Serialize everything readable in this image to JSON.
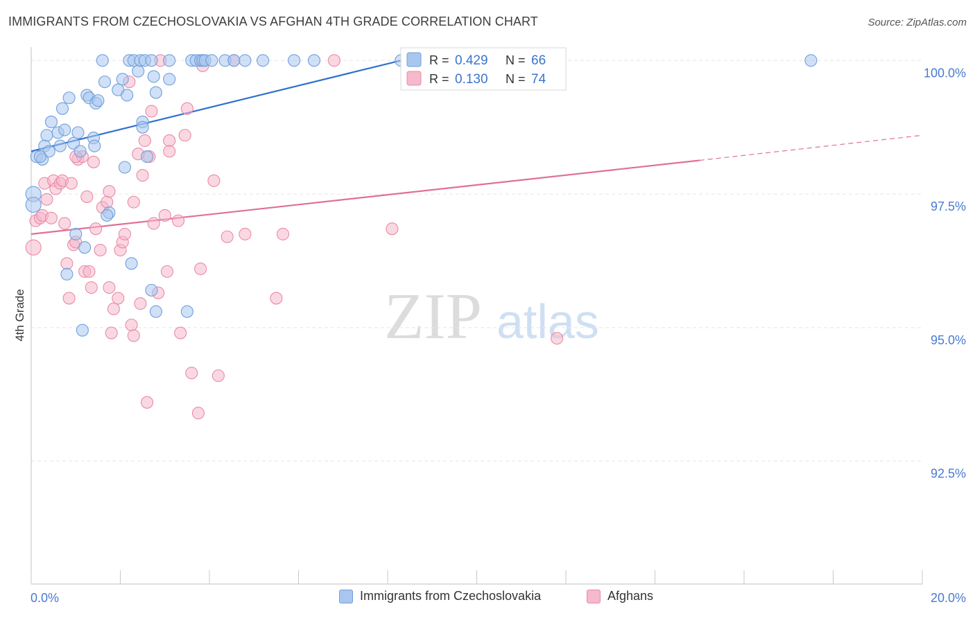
{
  "header": {
    "title": "IMMIGRANTS FROM CZECHOSLOVAKIA VS AFGHAN 4TH GRADE CORRELATION CHART",
    "source": "Source: ZipAtlas.com"
  },
  "watermark": {
    "zip": "ZIP",
    "atlas": "atlas"
  },
  "colors": {
    "blue_fill": "#a9c6ee",
    "blue_stroke": "#6f9fdc",
    "blue_line": "#2f6fce",
    "pink_fill": "#f6b8cb",
    "pink_stroke": "#e98aa8",
    "pink_line": "#e06f98",
    "axis_label": "#4a7ad0",
    "grid": "#e5e5e5"
  },
  "legend": {
    "rows": [
      {
        "r_label": "R =",
        "r_value": "0.429",
        "n_label": "N =",
        "n_value": "66"
      },
      {
        "r_label": "R =",
        "r_value": "0.130",
        "n_label": "N =",
        "n_value": "74"
      }
    ],
    "bottom": [
      "Immigrants from Czechoslovakia",
      "Afghans"
    ]
  },
  "chart_data": {
    "type": "scatter",
    "title": "IMMIGRANTS FROM CZECHOSLOVAKIA VS AFGHAN 4TH GRADE CORRELATION CHART",
    "xlabel": "",
    "ylabel": "4th Grade",
    "xlim": [
      0,
      20
    ],
    "ylim": [
      90.2,
      100.25
    ],
    "x_tick_labels": [
      "0.0%",
      "20.0%"
    ],
    "y_ticks": [
      100,
      97.5,
      95,
      92.5
    ],
    "y_tick_labels": [
      "100.0%",
      "97.5%",
      "95.0%",
      "92.5%"
    ],
    "grid": true,
    "legend_position": "top-center",
    "series": [
      {
        "name": "Immigrants from Czechoslovakia",
        "color": "#a9c6ee",
        "trend": {
          "x": [
            0,
            8.3
          ],
          "y": [
            98.3,
            100.0
          ]
        },
        "points": [
          [
            0.05,
            97.5
          ],
          [
            0.05,
            97.3
          ],
          [
            0.12,
            98.2
          ],
          [
            0.25,
            98.15
          ],
          [
            0.3,
            98.4
          ],
          [
            0.35,
            98.6
          ],
          [
            0.4,
            98.3
          ],
          [
            0.45,
            98.85
          ],
          [
            0.6,
            98.65
          ],
          [
            0.65,
            98.4
          ],
          [
            0.7,
            99.1
          ],
          [
            0.75,
            98.7
          ],
          [
            0.85,
            99.3
          ],
          [
            0.95,
            98.45
          ],
          [
            1.05,
            98.65
          ],
          [
            1.1,
            98.3
          ],
          [
            1.25,
            99.35
          ],
          [
            1.3,
            99.3
          ],
          [
            1.4,
            98.55
          ],
          [
            1.42,
            98.4
          ],
          [
            1.45,
            99.2
          ],
          [
            1.5,
            99.25
          ],
          [
            1.6,
            100.0
          ],
          [
            1.65,
            99.6
          ],
          [
            1.95,
            99.45
          ],
          [
            2.05,
            99.65
          ],
          [
            2.15,
            99.35
          ],
          [
            2.2,
            100.0
          ],
          [
            2.3,
            100.0
          ],
          [
            2.4,
            99.8
          ],
          [
            2.45,
            100.0
          ],
          [
            2.55,
            100.0
          ],
          [
            2.5,
            98.85
          ],
          [
            2.5,
            98.75
          ],
          [
            2.6,
            98.2
          ],
          [
            2.7,
            100.0
          ],
          [
            2.75,
            99.7
          ],
          [
            2.8,
            99.4
          ],
          [
            3.1,
            99.65
          ],
          [
            3.1,
            100.0
          ],
          [
            3.6,
            100.0
          ],
          [
            3.7,
            100.0
          ],
          [
            3.8,
            100.0
          ],
          [
            3.85,
            100.0
          ],
          [
            3.9,
            100.0
          ],
          [
            4.05,
            100.0
          ],
          [
            4.35,
            100.0
          ],
          [
            4.55,
            100.0
          ],
          [
            4.8,
            100.0
          ],
          [
            5.2,
            100.0
          ],
          [
            5.9,
            100.0
          ],
          [
            6.35,
            100.0
          ],
          [
            8.3,
            100.0
          ],
          [
            17.5,
            100.0
          ],
          [
            1.0,
            96.75
          ],
          [
            1.2,
            96.5
          ],
          [
            0.8,
            96.0
          ],
          [
            1.75,
            97.15
          ],
          [
            1.7,
            97.1
          ],
          [
            2.1,
            98.0
          ],
          [
            2.25,
            96.2
          ],
          [
            2.7,
            95.7
          ],
          [
            2.8,
            95.3
          ],
          [
            3.5,
            95.3
          ],
          [
            1.15,
            94.95
          ],
          [
            0.2,
            98.2
          ]
        ]
      },
      {
        "name": "Afghans",
        "color": "#f6b8cb",
        "trend": {
          "x": [
            0,
            15.0
          ],
          "y": [
            96.75,
            98.13
          ]
        },
        "trend_dashed": {
          "x": [
            15.0,
            20.0
          ],
          "y": [
            98.13,
            98.6
          ]
        },
        "points": [
          [
            0.05,
            96.5
          ],
          [
            0.1,
            97.0
          ],
          [
            0.2,
            97.05
          ],
          [
            0.25,
            97.1
          ],
          [
            0.3,
            97.7
          ],
          [
            0.35,
            97.4
          ],
          [
            0.45,
            97.05
          ],
          [
            0.5,
            97.75
          ],
          [
            0.55,
            97.6
          ],
          [
            0.65,
            97.7
          ],
          [
            0.7,
            97.75
          ],
          [
            0.75,
            96.95
          ],
          [
            0.8,
            96.2
          ],
          [
            0.85,
            95.55
          ],
          [
            0.9,
            97.7
          ],
          [
            0.95,
            96.55
          ],
          [
            1.0,
            96.6
          ],
          [
            1.05,
            98.15
          ],
          [
            1.15,
            98.2
          ],
          [
            1.2,
            96.05
          ],
          [
            1.25,
            97.45
          ],
          [
            1.3,
            96.05
          ],
          [
            1.35,
            95.75
          ],
          [
            1.4,
            98.1
          ],
          [
            1.45,
            96.85
          ],
          [
            1.55,
            96.45
          ],
          [
            1.6,
            97.25
          ],
          [
            1.7,
            97.35
          ],
          [
            1.75,
            95.75
          ],
          [
            1.75,
            97.55
          ],
          [
            1.8,
            94.9
          ],
          [
            1.85,
            95.35
          ],
          [
            1.95,
            95.55
          ],
          [
            2.0,
            96.45
          ],
          [
            2.05,
            96.6
          ],
          [
            2.1,
            96.75
          ],
          [
            2.2,
            99.6
          ],
          [
            2.25,
            95.05
          ],
          [
            2.3,
            94.85
          ],
          [
            2.3,
            97.35
          ],
          [
            2.4,
            98.25
          ],
          [
            2.45,
            95.45
          ],
          [
            2.5,
            97.85
          ],
          [
            2.55,
            98.5
          ],
          [
            2.6,
            93.6
          ],
          [
            2.65,
            98.2
          ],
          [
            2.7,
            99.05
          ],
          [
            2.75,
            96.95
          ],
          [
            2.85,
            95.65
          ],
          [
            2.9,
            100.0
          ],
          [
            3.0,
            97.1
          ],
          [
            3.05,
            96.05
          ],
          [
            3.1,
            98.5
          ],
          [
            3.1,
            98.3
          ],
          [
            3.3,
            97.0
          ],
          [
            3.35,
            94.9
          ],
          [
            3.45,
            98.6
          ],
          [
            3.5,
            99.1
          ],
          [
            3.6,
            94.15
          ],
          [
            3.75,
            93.4
          ],
          [
            3.8,
            96.1
          ],
          [
            3.85,
            99.9
          ],
          [
            4.1,
            97.75
          ],
          [
            4.2,
            94.1
          ],
          [
            4.4,
            96.7
          ],
          [
            4.55,
            100.0
          ],
          [
            4.8,
            96.75
          ],
          [
            5.5,
            95.55
          ],
          [
            5.65,
            96.75
          ],
          [
            6.8,
            100.0
          ],
          [
            8.1,
            96.85
          ],
          [
            10.4,
            100.0
          ],
          [
            11.8,
            94.8
          ],
          [
            1.0,
            98.2
          ]
        ]
      }
    ]
  }
}
